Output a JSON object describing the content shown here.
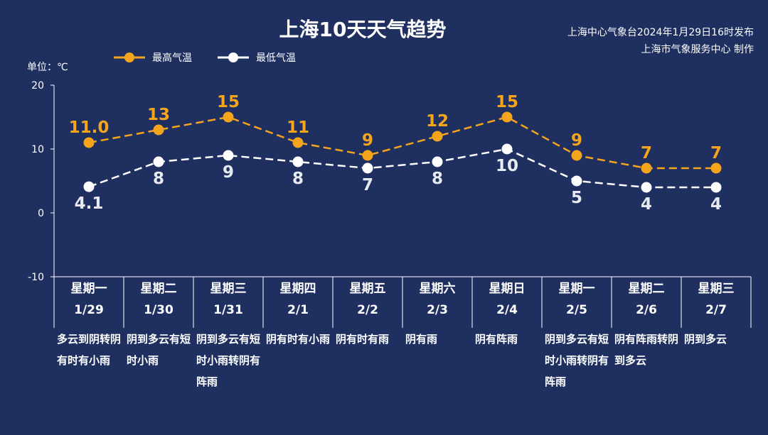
{
  "header": {
    "title": "上海10天天气趋势",
    "source_line1": "上海中心气象台2024年1月29日16时发布",
    "source_line2": "上海市气象服务中心 制作"
  },
  "unit_label": "单位：℃",
  "colors": {
    "background": "#1f3060",
    "high": "#f5a51c",
    "low": "#ffffff",
    "axis": "#ffffff"
  },
  "days": [
    {
      "weekday": "星期一",
      "date": "1/29",
      "desc": "多云到阴转阴有时有小雨"
    },
    {
      "weekday": "星期二",
      "date": "1/30",
      "desc": "阴到多云有短时小雨"
    },
    {
      "weekday": "星期三",
      "date": "1/31",
      "desc": "阴到多云有短时小雨转阴有阵雨"
    },
    {
      "weekday": "星期四",
      "date": "2/1",
      "desc": "阴有时有小雨"
    },
    {
      "weekday": "星期五",
      "date": "2/2",
      "desc": "阴有时有雨"
    },
    {
      "weekday": "星期六",
      "date": "2/3",
      "desc": "阴有雨"
    },
    {
      "weekday": "星期日",
      "date": "2/4",
      "desc": "阴有阵雨"
    },
    {
      "weekday": "星期一",
      "date": "2/5",
      "desc": "阴到多云有短时小雨转阴有阵雨"
    },
    {
      "weekday": "星期二",
      "date": "2/6",
      "desc": "阴有阵雨转阴到多云"
    },
    {
      "weekday": "星期三",
      "date": "2/7",
      "desc": "阴到多云"
    }
  ],
  "chart_data": {
    "type": "line",
    "categories": [
      "1/29",
      "1/30",
      "1/31",
      "2/1",
      "2/2",
      "2/3",
      "2/4",
      "2/5",
      "2/6",
      "2/7"
    ],
    "series": [
      {
        "name": "最高气温",
        "values": [
          11.0,
          13,
          15,
          11,
          9,
          12,
          15,
          9,
          7,
          7
        ],
        "labels": [
          "11.0",
          "13",
          "15",
          "11",
          "9",
          "12",
          "15",
          "9",
          "7",
          "7"
        ]
      },
      {
        "name": "最低气温",
        "values": [
          4.1,
          8,
          9,
          8,
          7,
          8,
          10,
          5,
          4,
          4
        ],
        "labels": [
          "4.1",
          "8",
          "9",
          "8",
          "7",
          "8",
          "10",
          "5",
          "4",
          "4"
        ]
      }
    ],
    "ylim": [
      -10,
      20
    ],
    "yticks": [
      20,
      10,
      0,
      -10
    ],
    "grid": false,
    "legend_position": "top-left",
    "line_style": "dashed"
  }
}
